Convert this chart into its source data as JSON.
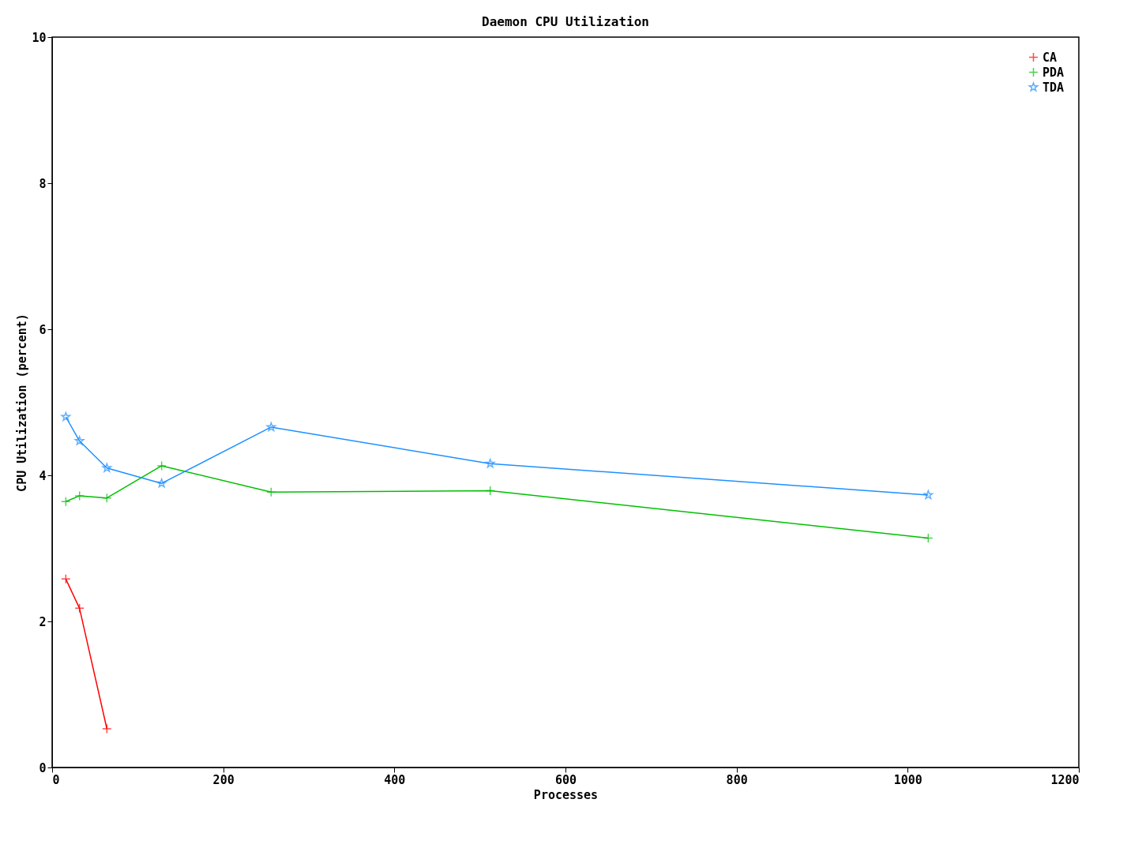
{
  "chart_data": {
    "type": "line",
    "title": "Daemon CPU Utilization",
    "xlabel": "Processes",
    "ylabel": "CPU Utilization (percent)",
    "xlim": [
      0,
      1200
    ],
    "xticks": [
      0,
      200,
      400,
      600,
      800,
      1000,
      1200
    ],
    "ylim": [
      0,
      10
    ],
    "yticks": [
      0,
      2,
      4,
      6,
      8,
      10
    ],
    "grid": false,
    "legend": "top right",
    "line_style": "solid",
    "series": [
      {
        "name": "CA",
        "color": "#ff0000",
        "marker": "cross",
        "x": [
          16,
          32,
          64
        ],
        "values": [
          2.58,
          2.18,
          0.53
        ]
      },
      {
        "name": "PDA",
        "color": "#00c000",
        "marker": "cross",
        "x": [
          16,
          32,
          64,
          128,
          256,
          512,
          1024
        ],
        "values": [
          3.64,
          3.72,
          3.69,
          4.13,
          3.77,
          3.79,
          3.14
        ]
      },
      {
        "name": "TDA",
        "color": "#1e90ff",
        "marker": "star",
        "x": [
          16,
          32,
          64,
          128,
          256,
          512,
          1024
        ],
        "values": [
          4.8,
          4.47,
          4.1,
          3.89,
          4.66,
          4.16,
          3.73
        ]
      }
    ]
  }
}
